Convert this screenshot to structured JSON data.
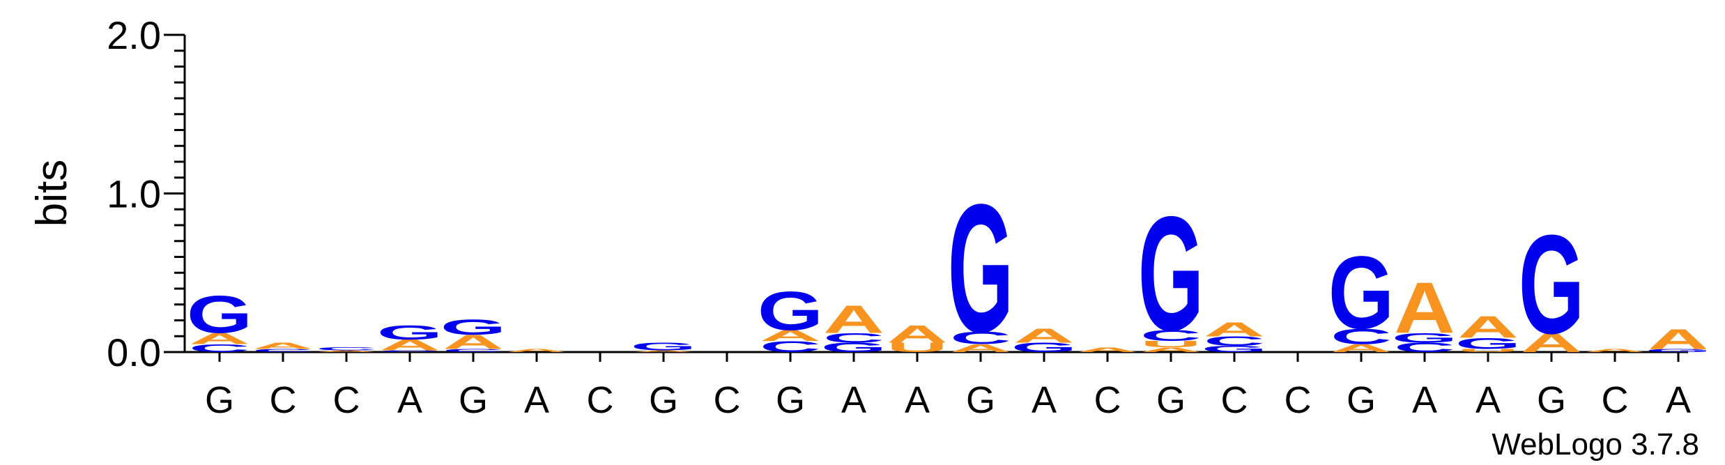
{
  "chart_data": {
    "type": "sequence-logo",
    "ylabel": "bits",
    "ylim": [
      0,
      2.0
    ],
    "y_ticks": [
      "0.0",
      "1.0",
      "2.0"
    ],
    "x_labels": [
      "G",
      "C",
      "C",
      "A",
      "G",
      "A",
      "C",
      "G",
      "C",
      "G",
      "A",
      "A",
      "G",
      "A",
      "C",
      "G",
      "C",
      "C",
      "G",
      "A",
      "A",
      "G",
      "C",
      "A"
    ],
    "watermark": "WebLogo 3.7.8",
    "colors": {
      "G": "#0000ee",
      "C": "#0000ee",
      "A": "#f7931e",
      "U": "#f7931e"
    },
    "columns": [
      [
        {
          "l": "C",
          "h": 0.05
        },
        {
          "l": "A",
          "h": 0.07
        },
        {
          "l": "G",
          "h": 0.24
        }
      ],
      [
        {
          "l": "C",
          "h": 0.02
        },
        {
          "l": "A",
          "h": 0.04
        }
      ],
      [
        {
          "l": "A",
          "h": 0.01
        },
        {
          "l": "C",
          "h": 0.02
        }
      ],
      [
        {
          "l": "C",
          "h": 0.01
        },
        {
          "l": "A",
          "h": 0.07
        },
        {
          "l": "G",
          "h": 0.09
        }
      ],
      [
        {
          "l": "C",
          "h": 0.02
        },
        {
          "l": "A",
          "h": 0.09
        },
        {
          "l": "G",
          "h": 0.1
        }
      ],
      [
        {
          "l": "A",
          "h": 0.02
        }
      ],
      [],
      [
        {
          "l": "A",
          "h": 0.01
        },
        {
          "l": "G",
          "h": 0.05
        }
      ],
      [],
      [
        {
          "l": "C",
          "h": 0.07
        },
        {
          "l": "A",
          "h": 0.07
        },
        {
          "l": "G",
          "h": 0.25
        }
      ],
      [
        {
          "l": "G",
          "h": 0.06
        },
        {
          "l": "C",
          "h": 0.06
        },
        {
          "l": "A",
          "h": 0.18
        }
      ],
      [
        {
          "l": "U",
          "h": 0.06
        },
        {
          "l": "A",
          "h": 0.11
        }
      ],
      [
        {
          "l": "A",
          "h": 0.05
        },
        {
          "l": "C",
          "h": 0.08
        },
        {
          "l": "G",
          "h": 0.83
        }
      ],
      [
        {
          "l": "G",
          "h": 0.06
        },
        {
          "l": "A",
          "h": 0.09
        }
      ],
      [
        {
          "l": "A",
          "h": 0.03
        }
      ],
      [
        {
          "l": "A",
          "h": 0.03
        },
        {
          "l": "U",
          "h": 0.04
        },
        {
          "l": "C",
          "h": 0.07
        },
        {
          "l": "G",
          "h": 0.74
        }
      ],
      [
        {
          "l": "G",
          "h": 0.04
        },
        {
          "l": "C",
          "h": 0.06
        },
        {
          "l": "A",
          "h": 0.09
        }
      ],
      [],
      [
        {
          "l": "A",
          "h": 0.05
        },
        {
          "l": "C",
          "h": 0.1
        },
        {
          "l": "G",
          "h": 0.47
        }
      ],
      [
        {
          "l": "C",
          "h": 0.06
        },
        {
          "l": "G",
          "h": 0.06
        },
        {
          "l": "A",
          "h": 0.33
        }
      ],
      [
        {
          "l": "U",
          "h": 0.02
        },
        {
          "l": "G",
          "h": 0.07
        },
        {
          "l": "A",
          "h": 0.14
        }
      ],
      [
        {
          "l": "A",
          "h": 0.12
        },
        {
          "l": "G",
          "h": 0.64
        }
      ],
      [
        {
          "l": "A",
          "h": 0.02
        }
      ],
      [
        {
          "l": "G",
          "h": 0.02
        },
        {
          "l": "A",
          "h": 0.13
        }
      ]
    ]
  }
}
